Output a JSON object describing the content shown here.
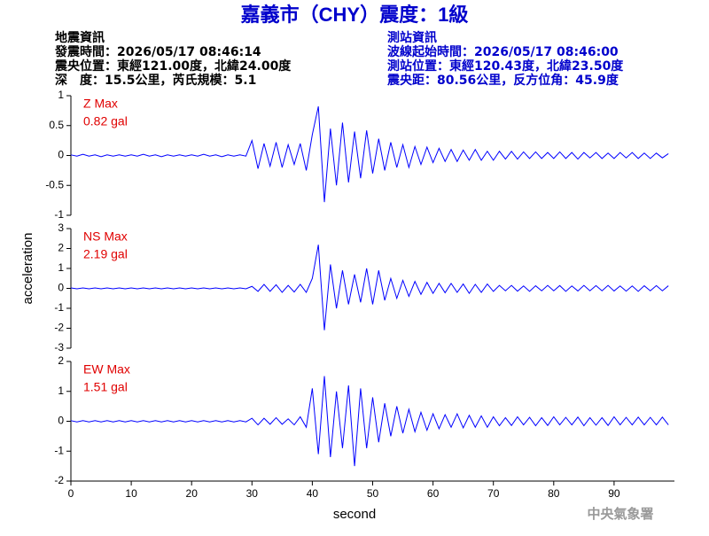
{
  "title": "嘉義市（CHY）震度：1級",
  "event_info": [
    "地震資訊",
    "發震時間：2026/05/17 08:46:14",
    "震央位置：東經121.00度，北緯24.00度",
    "深　度：15.5公里，芮氏規模：5.1"
  ],
  "station_info": [
    "測站資訊",
    "波線起始時間：2026/05/17 08:46:00",
    "測站位置：東經120.43度，北緯23.50度",
    "震央距：80.56公里，反方位角：45.9度"
  ],
  "credit": "中央氣象署",
  "chart_data": [
    {
      "type": "line",
      "label": "Z Max",
      "peak": "0.82 gal",
      "xlim": [
        0,
        100
      ],
      "ylim": [
        -1,
        1
      ],
      "yticks": [
        -1,
        -0.5,
        0,
        0.5,
        1
      ],
      "x": [
        0,
        1,
        2,
        3,
        4,
        5,
        6,
        7,
        8,
        9,
        10,
        11,
        12,
        13,
        14,
        15,
        16,
        17,
        18,
        19,
        20,
        21,
        22,
        23,
        24,
        25,
        26,
        27,
        28,
        29,
        30,
        31,
        32,
        33,
        34,
        35,
        36,
        37,
        38,
        39,
        40,
        41,
        42,
        43,
        44,
        45,
        46,
        47,
        48,
        49,
        50,
        51,
        52,
        53,
        54,
        55,
        56,
        57,
        58,
        59,
        60,
        61,
        62,
        63,
        64,
        65,
        66,
        67,
        68,
        69,
        70,
        71,
        72,
        73,
        74,
        75,
        76,
        77,
        78,
        79,
        80,
        81,
        82,
        83,
        84,
        85,
        86,
        87,
        88,
        89,
        90,
        91,
        92,
        93,
        94,
        95,
        96,
        97,
        98,
        99
      ],
      "series": [
        {
          "color": "#0000ff",
          "values": [
            0.01,
            -0.01,
            0.02,
            -0.01,
            0.01,
            -0.02,
            0.01,
            -0.01,
            0.01,
            -0.01,
            0.01,
            -0.01,
            0.02,
            -0.01,
            0.01,
            -0.02,
            0.01,
            -0.01,
            0.01,
            -0.01,
            0.01,
            -0.01,
            0.02,
            -0.01,
            0.01,
            -0.02,
            0.01,
            -0.01,
            0.01,
            -0.01,
            0.25,
            -0.22,
            0.2,
            -0.18,
            0.22,
            -0.2,
            0.18,
            -0.15,
            0.2,
            -0.25,
            0.35,
            0.82,
            -0.78,
            0.45,
            -0.5,
            0.55,
            -0.45,
            0.4,
            -0.38,
            0.42,
            -0.3,
            0.28,
            -0.25,
            0.22,
            -0.2,
            0.18,
            -0.2,
            0.15,
            -0.15,
            0.14,
            -0.12,
            0.12,
            -0.1,
            0.1,
            -0.1,
            0.09,
            -0.08,
            0.1,
            -0.08,
            0.07,
            -0.08,
            0.07,
            -0.06,
            0.07,
            -0.06,
            0.06,
            -0.05,
            0.06,
            -0.05,
            0.05,
            -0.05,
            0.06,
            -0.05,
            0.05,
            -0.06,
            0.05,
            -0.04,
            0.05,
            -0.05,
            0.04,
            -0.05,
            0.05,
            -0.04,
            0.05,
            -0.05,
            0.04,
            -0.05,
            0.04,
            -0.04,
            0.03
          ]
        }
      ]
    },
    {
      "type": "line",
      "label": "NS Max",
      "peak": "2.19 gal",
      "ylabel": "acceleration",
      "xlim": [
        0,
        100
      ],
      "ylim": [
        -3,
        3
      ],
      "yticks": [
        -3,
        -2,
        -1,
        0,
        1,
        2,
        3
      ],
      "x": [
        0,
        1,
        2,
        3,
        4,
        5,
        6,
        7,
        8,
        9,
        10,
        11,
        12,
        13,
        14,
        15,
        16,
        17,
        18,
        19,
        20,
        21,
        22,
        23,
        24,
        25,
        26,
        27,
        28,
        29,
        30,
        31,
        32,
        33,
        34,
        35,
        36,
        37,
        38,
        39,
        40,
        41,
        42,
        43,
        44,
        45,
        46,
        47,
        48,
        49,
        50,
        51,
        52,
        53,
        54,
        55,
        56,
        57,
        58,
        59,
        60,
        61,
        62,
        63,
        64,
        65,
        66,
        67,
        68,
        69,
        70,
        71,
        72,
        73,
        74,
        75,
        76,
        77,
        78,
        79,
        80,
        81,
        82,
        83,
        84,
        85,
        86,
        87,
        88,
        89,
        90,
        91,
        92,
        93,
        94,
        95,
        96,
        97,
        98,
        99
      ],
      "series": [
        {
          "color": "#0000ff",
          "values": [
            0.02,
            -0.02,
            0.02,
            -0.02,
            0.02,
            -0.02,
            0.02,
            -0.02,
            0.02,
            -0.02,
            0.02,
            -0.02,
            0.02,
            -0.02,
            0.02,
            -0.02,
            0.02,
            -0.02,
            0.02,
            -0.02,
            0.02,
            -0.02,
            0.02,
            -0.02,
            0.02,
            -0.02,
            0.02,
            -0.02,
            0.02,
            -0.02,
            0.1,
            -0.15,
            0.2,
            -0.15,
            0.18,
            -0.2,
            0.15,
            -0.18,
            0.2,
            -0.2,
            0.5,
            2.19,
            -2.1,
            1.2,
            -1.0,
            0.9,
            -0.8,
            0.7,
            -0.7,
            1.0,
            -0.8,
            0.9,
            -0.6,
            0.5,
            -0.5,
            0.4,
            -0.4,
            0.35,
            -0.3,
            0.3,
            -0.25,
            0.25,
            -0.22,
            0.25,
            -0.2,
            0.22,
            -0.25,
            0.2,
            -0.2,
            0.22,
            -0.15,
            0.15,
            -0.12,
            0.15,
            -0.14,
            0.12,
            -0.15,
            0.13,
            -0.12,
            0.15,
            -0.12,
            0.14,
            -0.15,
            0.12,
            -0.13,
            0.15,
            -0.12,
            0.14,
            -0.12,
            0.15,
            -0.13,
            0.12,
            -0.14,
            0.12,
            -0.15,
            0.13,
            -0.12,
            0.14,
            -0.12,
            0.13
          ]
        }
      ]
    },
    {
      "type": "line",
      "label": "EW Max",
      "peak": "1.51 gal",
      "xlabel": "second",
      "xlim": [
        0,
        100
      ],
      "ylim": [
        -2,
        2
      ],
      "yticks": [
        -2,
        -1,
        0,
        1,
        2
      ],
      "xticks": [
        0,
        10,
        20,
        30,
        40,
        50,
        60,
        70,
        80,
        90
      ],
      "x": [
        0,
        1,
        2,
        3,
        4,
        5,
        6,
        7,
        8,
        9,
        10,
        11,
        12,
        13,
        14,
        15,
        16,
        17,
        18,
        19,
        20,
        21,
        22,
        23,
        24,
        25,
        26,
        27,
        28,
        29,
        30,
        31,
        32,
        33,
        34,
        35,
        36,
        37,
        38,
        39,
        40,
        41,
        42,
        43,
        44,
        45,
        46,
        47,
        48,
        49,
        50,
        51,
        52,
        53,
        54,
        55,
        56,
        57,
        58,
        59,
        60,
        61,
        62,
        63,
        64,
        65,
        66,
        67,
        68,
        69,
        70,
        71,
        72,
        73,
        74,
        75,
        76,
        77,
        78,
        79,
        80,
        81,
        82,
        83,
        84,
        85,
        86,
        87,
        88,
        89,
        90,
        91,
        92,
        93,
        94,
        95,
        96,
        97,
        98,
        99
      ],
      "series": [
        {
          "color": "#0000ff",
          "values": [
            0.02,
            -0.02,
            0.02,
            -0.02,
            0.02,
            -0.02,
            0.02,
            -0.02,
            0.02,
            -0.02,
            0.02,
            -0.02,
            0.02,
            -0.02,
            0.02,
            -0.02,
            0.02,
            -0.02,
            0.02,
            -0.02,
            0.02,
            -0.02,
            0.02,
            -0.02,
            0.02,
            -0.02,
            0.02,
            -0.02,
            0.02,
            -0.02,
            0.1,
            -0.12,
            0.1,
            -0.1,
            0.12,
            -0.1,
            0.08,
            -0.12,
            0.15,
            -0.2,
            1.1,
            -1.1,
            1.51,
            -1.2,
            1.0,
            -0.9,
            1.2,
            -1.5,
            1.1,
            -0.9,
            0.8,
            -0.7,
            0.6,
            -0.5,
            0.5,
            -0.4,
            0.4,
            -0.35,
            0.3,
            -0.3,
            0.25,
            -0.25,
            0.22,
            -0.2,
            0.25,
            -0.22,
            0.2,
            -0.2,
            0.18,
            -0.2,
            0.15,
            -0.15,
            0.12,
            -0.14,
            0.15,
            -0.12,
            0.13,
            -0.15,
            0.12,
            -0.14,
            0.15,
            -0.12,
            0.13,
            -0.12,
            0.14,
            -0.15,
            0.12,
            -0.13,
            0.12,
            -0.14,
            0.15,
            -0.12,
            0.13,
            -0.12,
            0.14,
            -0.12,
            0.13,
            -0.12,
            0.14,
            -0.12
          ]
        }
      ]
    }
  ]
}
